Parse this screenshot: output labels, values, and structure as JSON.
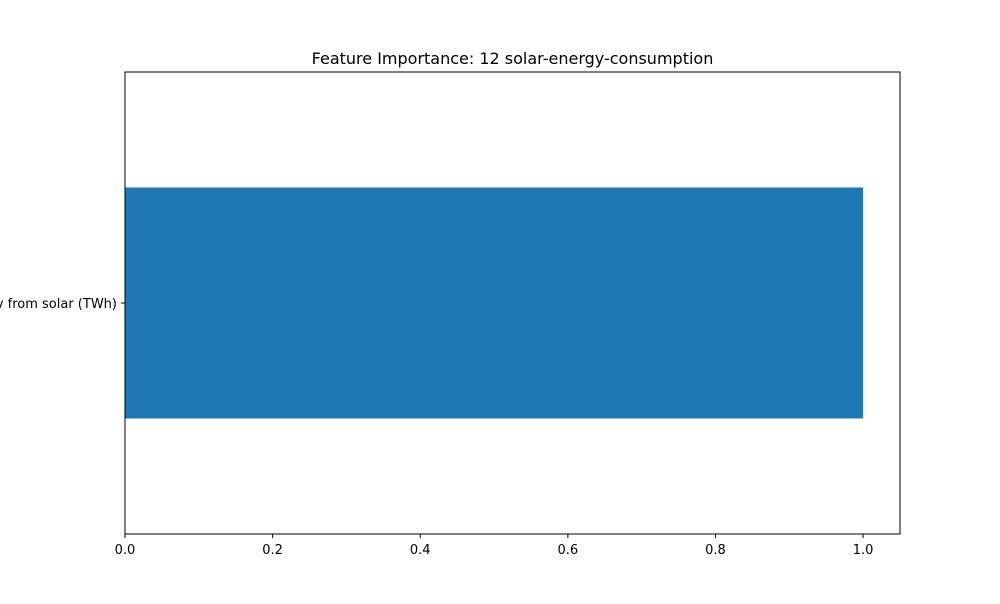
{
  "chart_data": {
    "type": "bar",
    "orientation": "horizontal",
    "title": "Feature Importance: 12 solar-energy-consumption",
    "categories": [
      "Electricity from solar (TWh)"
    ],
    "values": [
      1.0
    ],
    "xlabel": "",
    "ylabel": "",
    "xlim": [
      0,
      1.05
    ],
    "x_ticks": [
      0.0,
      0.2,
      0.4,
      0.6,
      0.8,
      1.0
    ],
    "x_tick_labels": [
      "0.0",
      "0.2",
      "0.4",
      "0.6",
      "0.8",
      "1.0"
    ],
    "grid": false,
    "legend": "none",
    "bar_color": "#1f77b4"
  }
}
